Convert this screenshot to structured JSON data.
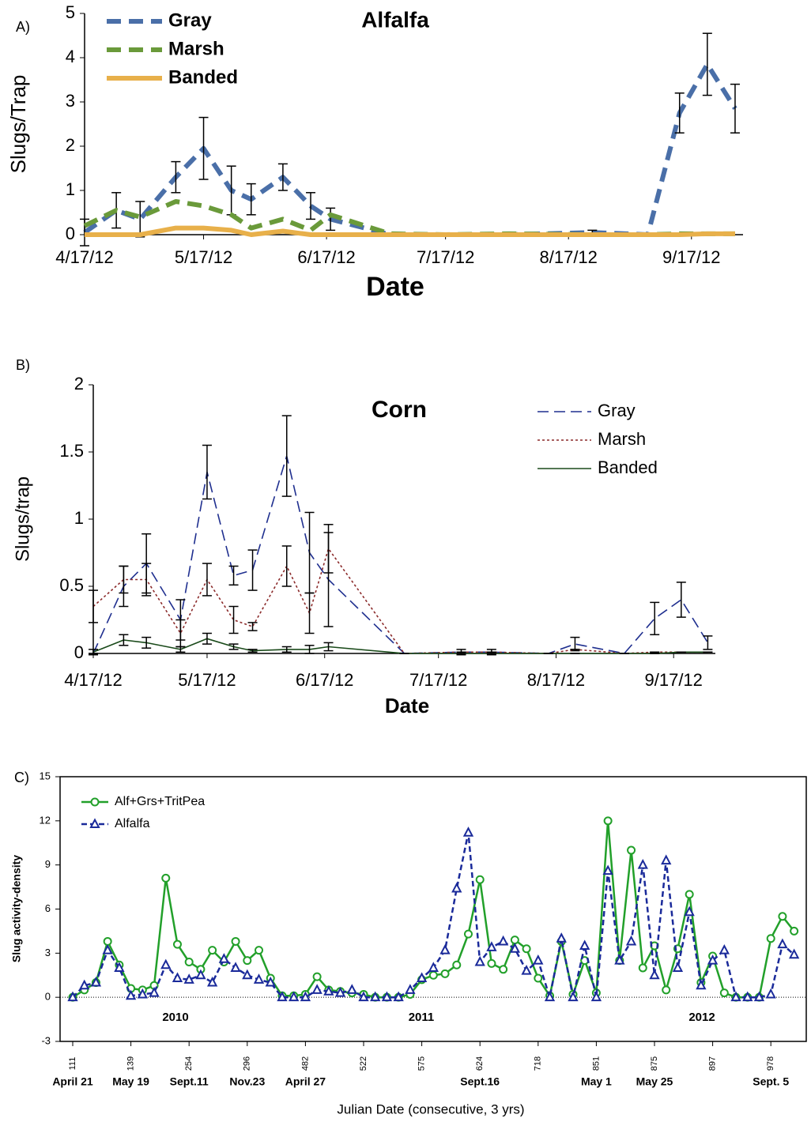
{
  "chart_data": [
    {
      "type": "line",
      "panel_label": "A)",
      "title": "Alfalfa",
      "ylabel": "Slugs/Trap",
      "xlabel": "Date",
      "legend": "upper left",
      "x": [
        "4/17/12",
        "4/25/12",
        "5/1/12",
        "5/10/12",
        "5/17/12",
        "5/24/12",
        "5/29/12",
        "6/6/12",
        "6/13/12",
        "6/18/12",
        "7/3/12",
        "7/17/12",
        "8/2/12",
        "8/23/12",
        "9/6/12",
        "9/14/12",
        "9/21/12",
        "9/28/12"
      ],
      "xlim": [
        "4/17/12",
        "9/30/12"
      ],
      "xticks": [
        "4/17/12",
        "5/17/12",
        "6/17/12",
        "7/17/12",
        "8/17/12",
        "9/17/12"
      ],
      "ylim": [
        0,
        5
      ],
      "yticks": [
        0,
        1,
        2,
        3,
        4,
        5
      ],
      "series": [
        {
          "name": "Gray",
          "color": "#4a6fa8",
          "line_style": "dashed",
          "values": [
            0.05,
            0.55,
            0.35,
            1.3,
            1.95,
            1.0,
            0.8,
            1.3,
            0.65,
            0.35,
            0,
            0,
            0,
            0.05,
            0,
            2.75,
            3.85,
            2.85
          ],
          "errors": [
            0.3,
            0.4,
            0.4,
            0.35,
            0.7,
            0.55,
            0.35,
            0.3,
            0.3,
            0.25,
            0,
            0,
            0,
            0.05,
            0,
            0.45,
            0.7,
            0.55
          ]
        },
        {
          "name": "Marsh",
          "color": "#6a9a3a",
          "line_style": "dashed",
          "values": [
            0.2,
            0.55,
            0.4,
            0.75,
            0.65,
            0.45,
            0.15,
            0.35,
            0.1,
            0.45,
            0.02,
            0,
            0.02,
            0,
            0,
            0.02,
            0.02,
            0.02
          ]
        },
        {
          "name": "Banded",
          "color": "#e8b04a",
          "line_style": "solid",
          "values": [
            0,
            0,
            0,
            0.15,
            0.15,
            0.1,
            0,
            0.08,
            0,
            0,
            0,
            0,
            0,
            0,
            0,
            0,
            0.02,
            0.02
          ]
        }
      ]
    },
    {
      "type": "line",
      "panel_label": "B)",
      "title": "Corn",
      "ylabel": "Slugs/trap",
      "xlabel": "Date",
      "legend": "upper right",
      "x": [
        "4/17/12",
        "4/25/12",
        "5/1/12",
        "5/10/12",
        "5/17/12",
        "5/24/12",
        "5/29/12",
        "6/7/12",
        "6/13/12",
        "6/18/12",
        "7/8/12",
        "7/23/12",
        "7/31/12",
        "8/15/12",
        "8/22/12",
        "9/4/12",
        "9/12/12",
        "9/19/12",
        "9/26/12"
      ],
      "xlim": [
        "4/17/12",
        "9/28/12"
      ],
      "xticks": [
        "4/17/12",
        "5/17/12",
        "6/17/12",
        "7/17/12",
        "8/17/12",
        "9/17/12"
      ],
      "ylim": [
        0,
        2
      ],
      "yticks": [
        0,
        0.5,
        1,
        1.5,
        2
      ],
      "series": [
        {
          "name": "Gray",
          "color": "#1f2f8f",
          "line_style": "dashed",
          "values": [
            0,
            0.5,
            0.67,
            0.25,
            1.35,
            0.58,
            0.62,
            1.47,
            0.75,
            0.55,
            0,
            0.01,
            0.01,
            0,
            0.07,
            0,
            0.26,
            0.4,
            0.08
          ],
          "errors": [
            0,
            0.15,
            0.22,
            0.15,
            0.2,
            0.07,
            0.15,
            0.3,
            0.3,
            0.35,
            0,
            0.02,
            0.02,
            0,
            0.05,
            0,
            0.12,
            0.13,
            0.05
          ]
        },
        {
          "name": "Marsh",
          "color": "#8b2a2a",
          "line_style": "dotted",
          "values": [
            0.35,
            0.55,
            0.55,
            0.15,
            0.55,
            0.25,
            0.2,
            0.65,
            0.3,
            0.78,
            0,
            0.01,
            0.01,
            0,
            0.03,
            0,
            0.01,
            0.01,
            0.01
          ],
          "errors": [
            0.12,
            0.1,
            0.12,
            0.1,
            0.12,
            0.1,
            0.03,
            0.15,
            0.15,
            0.18,
            0,
            0,
            0,
            0,
            0,
            0,
            0,
            0,
            0
          ]
        },
        {
          "name": "Banded",
          "color": "#1a4a1a",
          "line_style": "solid",
          "values": [
            0.01,
            0.1,
            0.08,
            0.03,
            0.11,
            0.05,
            0.02,
            0.03,
            0.03,
            0.05,
            0,
            0,
            0,
            0,
            0,
            0,
            0,
            0.01,
            0.01
          ],
          "errors": [
            0.02,
            0.04,
            0.04,
            0.02,
            0.04,
            0.02,
            0.01,
            0.02,
            0.03,
            0.03,
            0,
            0,
            0,
            0,
            0,
            0,
            0,
            0,
            0
          ]
        }
      ]
    },
    {
      "type": "line",
      "panel_label": "C)",
      "ylabel": "Slug activity-density",
      "xlabel": "Julian Date (consecutive, 3 yrs)",
      "legend": "upper left",
      "zero_line": true,
      "categories": [
        "111",
        null,
        null,
        null,
        null,
        "139",
        null,
        null,
        null,
        null,
        "254",
        null,
        null,
        null,
        null,
        "296",
        null,
        null,
        null,
        null,
        "482",
        null,
        null,
        null,
        null,
        "522",
        null,
        null,
        null,
        null,
        "575",
        null,
        null,
        null,
        null,
        "624",
        null,
        null,
        null,
        null,
        "718",
        null,
        null,
        null,
        null,
        "851",
        null,
        null,
        null,
        null,
        "875",
        null,
        null,
        null,
        null,
        "897",
        null,
        null,
        null,
        null,
        "978",
        null,
        null
      ],
      "date_labels": [
        "April 21",
        "May 19",
        "Sept.11",
        "Nov.23",
        "April 27",
        null,
        null,
        "Sept.16",
        null,
        "May 1",
        "May 25",
        null,
        "Sept. 5"
      ],
      "year_labels": [
        "2010",
        "2011",
        "2012"
      ],
      "ylim": [
        -3,
        15
      ],
      "yticks": [
        -3,
        0,
        3,
        6,
        9,
        12,
        15
      ],
      "series": [
        {
          "name": "Alf+Grs+TritPea",
          "color": "#22a02a",
          "line_style": "solid",
          "marker": "circle",
          "values": [
            0,
            0.5,
            1.0,
            3.8,
            2.2,
            0.6,
            0.5,
            0.8,
            8.1,
            3.6,
            2.4,
            1.9,
            3.2,
            2.4,
            3.8,
            2.5,
            3.2,
            1.3,
            0.1,
            0.1,
            0.2,
            1.4,
            0.5,
            0.4,
            0.3,
            0.2,
            0,
            0,
            0,
            0.2,
            1.2,
            1.5,
            1.6,
            2.2,
            4.3,
            8.0,
            2.3,
            1.9,
            3.9,
            3.3,
            1.3,
            0.1,
            3.8,
            0.2,
            2.5,
            0.3,
            12.0,
            2.5,
            10.0,
            2.0,
            3.5,
            0.5,
            3.3,
            7.0,
            1.0,
            2.8,
            0.3,
            0,
            0,
            0,
            4.0,
            5.5,
            4.5
          ]
        },
        {
          "name": "Alfalfa",
          "color": "#1a2a9a",
          "line_style": "dashed",
          "marker": "triangle",
          "values": [
            0,
            0.8,
            1.0,
            3.2,
            2.0,
            0.1,
            0.2,
            0.3,
            2.2,
            1.3,
            1.2,
            1.5,
            1.0,
            2.6,
            2.0,
            1.5,
            1.2,
            1.0,
            0,
            0,
            0,
            0.5,
            0.4,
            0.3,
            0.5,
            0,
            0,
            0,
            0,
            0.5,
            1.3,
            2.0,
            3.2,
            7.4,
            11.2,
            2.4,
            3.4,
            3.8,
            3.3,
            1.8,
            2.5,
            0,
            4.0,
            0,
            3.5,
            0,
            8.6,
            2.5,
            3.8,
            9.0,
            1.5,
            9.3,
            2.0,
            5.8,
            0.8,
            2.5,
            3.2,
            0,
            0,
            0,
            0.2,
            3.6,
            2.9
          ]
        }
      ]
    }
  ]
}
